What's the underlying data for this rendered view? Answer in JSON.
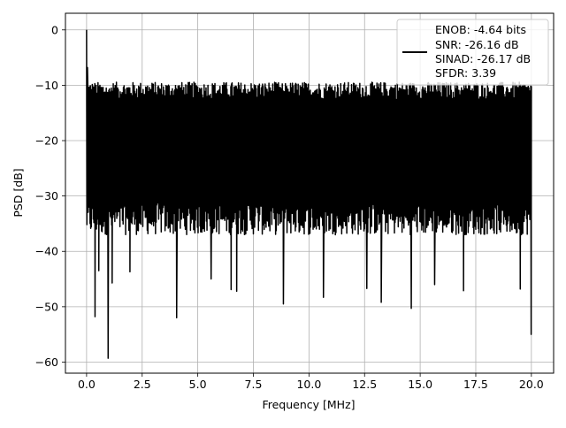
{
  "chart_data": {
    "type": "line",
    "title": "",
    "xlabel": "Frequency [MHz]",
    "ylabel": "PSD [dB]",
    "xlim": [
      -0.95,
      21.0
    ],
    "ylim": [
      -62.0,
      3.0
    ],
    "xticks": [
      0.0,
      2.5,
      5.0,
      7.5,
      10.0,
      12.5,
      15.0,
      17.5,
      20.0
    ],
    "xtick_labels": [
      "0.0",
      "2.5",
      "5.0",
      "7.5",
      "10.0",
      "12.5",
      "15.0",
      "17.5",
      "20.0"
    ],
    "yticks": [
      0,
      -10,
      -20,
      -30,
      -40,
      -50,
      -60
    ],
    "ytick_labels": [
      "0",
      "−10",
      "−20",
      "−30",
      "−40",
      "−50",
      "−60"
    ],
    "grid": true,
    "legend_position": "top-right",
    "colors": {
      "series": "#000000",
      "grid": "#b0b0b0",
      "frame": "#000000",
      "background": "#ffffff"
    },
    "series": [
      {
        "name": "ENOB: -4.64 bits\nSNR: -26.16 dB\nSINAD: -26.17 dB\nSFDR: 3.39",
        "legend_lines": [
          "ENOB: -4.64 bits",
          "SNR: -26.16 dB",
          "SINAD: -26.17 dB",
          "SFDR: 3.39"
        ],
        "x_range": [
          0.0,
          20.0
        ],
        "noise_band": {
          "upper_typical": -12.0,
          "lower_typical": -34.0
        },
        "peaks": [
          {
            "x": 0.0,
            "y": 0.0
          },
          {
            "x": 0.04,
            "y": -6.8
          }
        ],
        "dips": [
          {
            "x": 0.38,
            "y": -51.8
          },
          {
            "x": 0.55,
            "y": -43.5
          },
          {
            "x": 0.97,
            "y": -59.3
          },
          {
            "x": 1.15,
            "y": -45.7
          },
          {
            "x": 1.95,
            "y": -43.7
          },
          {
            "x": 4.05,
            "y": -52.0
          },
          {
            "x": 5.6,
            "y": -45.0
          },
          {
            "x": 6.5,
            "y": -46.9
          },
          {
            "x": 6.75,
            "y": -47.2
          },
          {
            "x": 8.85,
            "y": -49.5
          },
          {
            "x": 10.65,
            "y": -48.3
          },
          {
            "x": 12.6,
            "y": -46.7
          },
          {
            "x": 13.25,
            "y": -49.2
          },
          {
            "x": 14.6,
            "y": -50.3
          },
          {
            "x": 15.65,
            "y": -46.0
          },
          {
            "x": 16.95,
            "y": -47.1
          },
          {
            "x": 19.5,
            "y": -46.8
          },
          {
            "x": 19.99,
            "y": -55.0
          }
        ]
      }
    ]
  }
}
